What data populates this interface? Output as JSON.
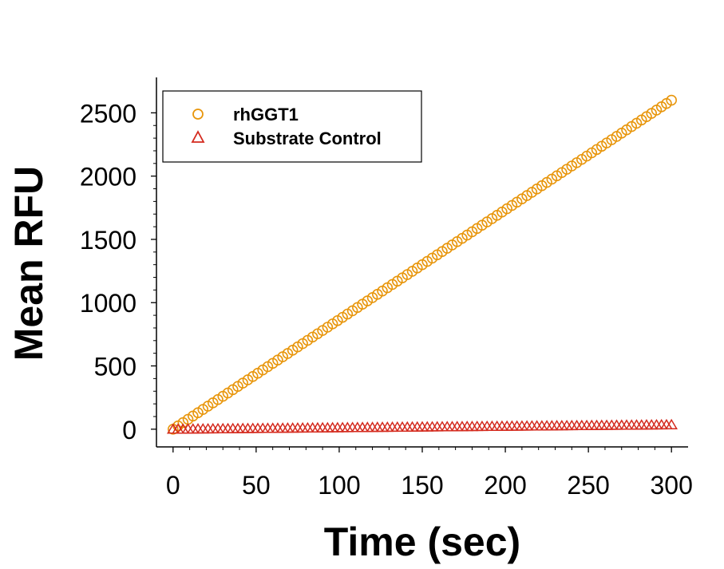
{
  "chart_data": {
    "type": "scatter",
    "xlabel": "Time (sec)",
    "ylabel": "Mean RFU",
    "xlim": [
      -10,
      310
    ],
    "ylim": [
      -140,
      2780
    ],
    "xticks": [
      0,
      50,
      100,
      150,
      200,
      250,
      300
    ],
    "yticks": [
      0,
      500,
      1000,
      1500,
      2000,
      2500
    ],
    "grid": false,
    "legend_position": "top-left",
    "series": [
      {
        "name": "rhGGT1",
        "marker": "circle",
        "color": "#E8960C",
        "x_start": 0,
        "x_end": 300,
        "x_step": 3,
        "y_start": 0,
        "y_end": 2600
      },
      {
        "name": "Substrate Control",
        "marker": "triangle",
        "color": "#D42A1E",
        "x_start": 0,
        "x_end": 300,
        "x_step": 3,
        "y_start": 0,
        "y_end": 35
      }
    ]
  }
}
